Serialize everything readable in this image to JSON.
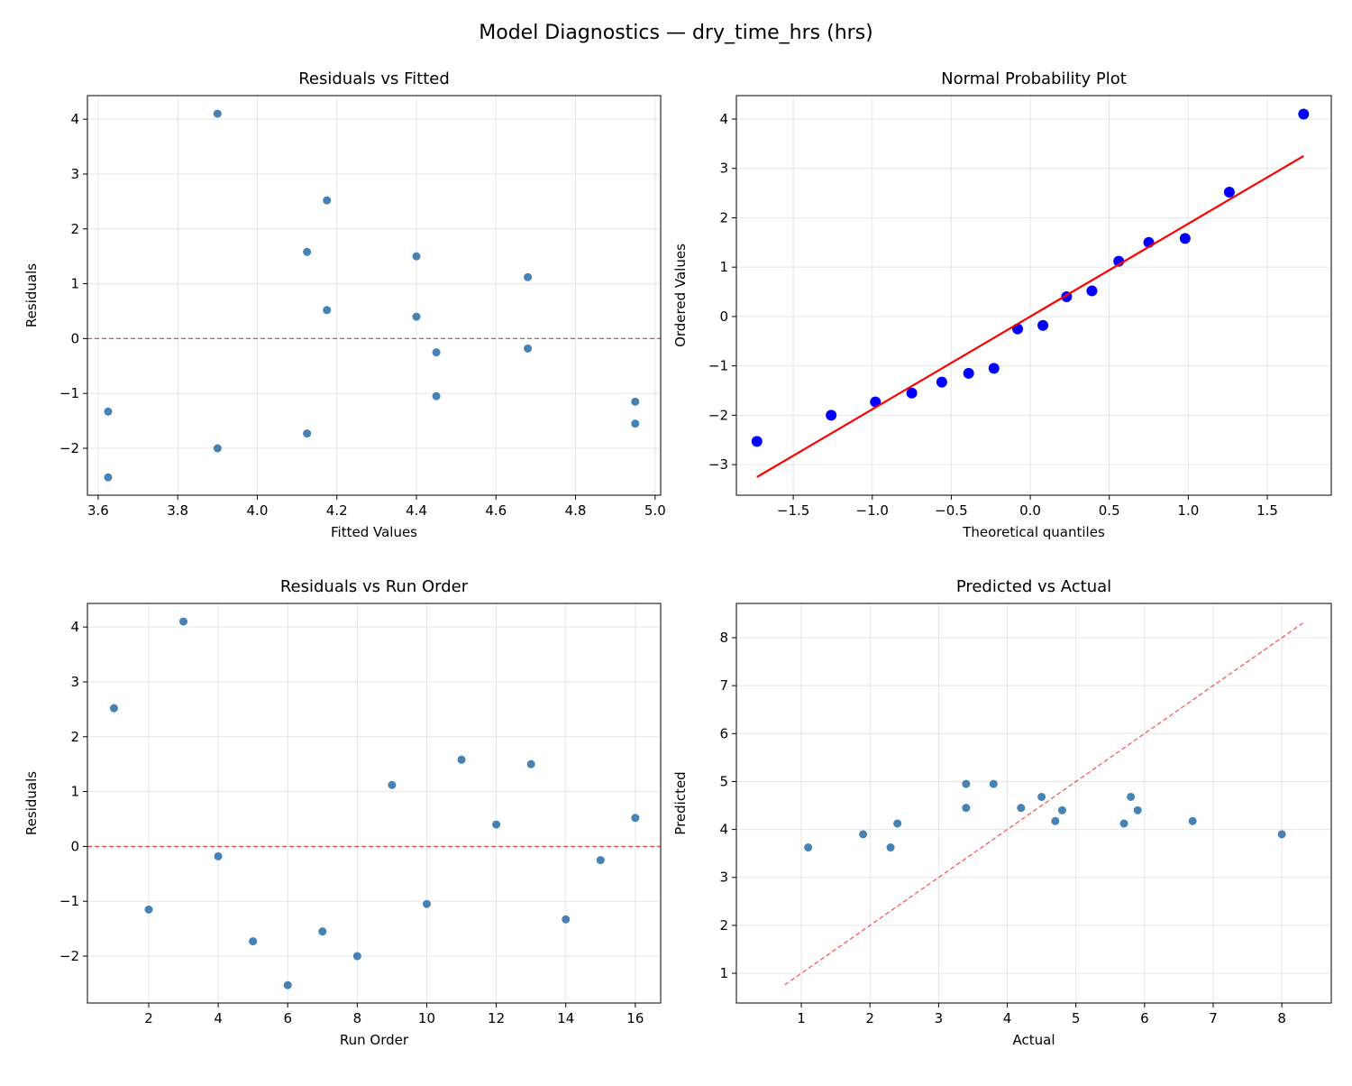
{
  "suptitle": "Model Diagnostics — dry_time_hrs (hrs)",
  "chart_data": [
    {
      "type": "scatter",
      "title": "Residuals vs Fitted",
      "xlabel": "Fitted Values",
      "ylabel": "Residuals",
      "xlim": [
        3.573,
        5.014
      ],
      "ylim": [
        -2.855,
        4.43
      ],
      "xticks": [
        3.6,
        3.8,
        4.0,
        4.2,
        4.4,
        4.6,
        4.8,
        5.0
      ],
      "xtick_labels": [
        "3.6",
        "3.8",
        "4.0",
        "4.2",
        "4.4",
        "4.6",
        "4.8",
        "5.0"
      ],
      "yticks": [
        -2,
        -1,
        0,
        1,
        2,
        3,
        4
      ],
      "ytick_labels": [
        "−2",
        "−1",
        "0",
        "1",
        "2",
        "3",
        "4"
      ],
      "grid": true,
      "color": "#4682b4",
      "x": [
        4.175,
        4.95,
        3.9,
        4.68,
        4.125,
        3.625,
        4.95,
        3.9,
        4.68,
        4.45,
        4.125,
        4.4,
        4.4,
        3.625,
        4.45,
        4.175
      ],
      "y": [
        2.52,
        -1.15,
        4.1,
        -0.18,
        -1.73,
        -2.53,
        -1.55,
        -2.0,
        1.12,
        -1.05,
        1.58,
        0.4,
        1.5,
        -1.33,
        -0.25,
        0.52
      ],
      "reference_line": {
        "type": "horizontal",
        "y": 0,
        "color": "#ff0000",
        "style": "dashed"
      }
    },
    {
      "type": "scatter",
      "title": "Normal Probability Plot",
      "xlabel": "Theoretical quantiles",
      "ylabel": "Ordered Values",
      "xlim": [
        -1.86,
        1.905
      ],
      "ylim": [
        -3.62,
        4.475
      ],
      "xticks": [
        -1.5,
        -1.0,
        -0.5,
        0.0,
        0.5,
        1.0,
        1.5
      ],
      "xtick_labels": [
        "−1.5",
        "−1.0",
        "−0.5",
        "0.0",
        "0.5",
        "1.0",
        "1.5"
      ],
      "yticks": [
        -3,
        -2,
        -1,
        0,
        1,
        2,
        3,
        4
      ],
      "ytick_labels": [
        "−3",
        "−2",
        "−1",
        "0",
        "1",
        "2",
        "3",
        "4"
      ],
      "grid": true,
      "color": "#0000ff",
      "x": [
        -1.73,
        -1.26,
        -0.98,
        -0.75,
        -0.56,
        -0.39,
        -0.23,
        -0.08,
        0.08,
        0.23,
        0.39,
        0.56,
        0.75,
        0.98,
        1.26,
        1.73
      ],
      "y": [
        -2.53,
        -2.0,
        -1.73,
        -1.55,
        -1.33,
        -1.15,
        -1.05,
        -0.25,
        -0.18,
        0.4,
        0.52,
        1.12,
        1.5,
        1.58,
        2.52,
        4.1
      ],
      "fit_line": {
        "slope": 1.88,
        "intercept": 0.0,
        "x_range": [
          -1.73,
          1.73
        ],
        "color": "#ff0000"
      }
    },
    {
      "type": "scatter",
      "title": "Residuals vs Run Order",
      "xlabel": "Run Order",
      "ylabel": "Residuals",
      "xlim": [
        0.237,
        16.73
      ],
      "ylim": [
        -2.855,
        4.43
      ],
      "xticks": [
        2,
        4,
        6,
        8,
        10,
        12,
        14,
        16
      ],
      "xtick_labels": [
        "2",
        "4",
        "6",
        "8",
        "10",
        "12",
        "14",
        "16"
      ],
      "yticks": [
        -2,
        -1,
        0,
        1,
        2,
        3,
        4
      ],
      "ytick_labels": [
        "−2",
        "−1",
        "0",
        "1",
        "2",
        "3",
        "4"
      ],
      "grid": true,
      "color": "#4682b4",
      "x": [
        1,
        2,
        3,
        4,
        5,
        6,
        7,
        8,
        9,
        10,
        11,
        12,
        13,
        14,
        15,
        16
      ],
      "y": [
        2.52,
        -1.15,
        4.1,
        -0.18,
        -1.73,
        -2.53,
        -1.55,
        -2.0,
        1.12,
        -1.05,
        1.58,
        0.4,
        1.5,
        -1.33,
        -0.25,
        0.52
      ],
      "reference_line": {
        "type": "horizontal",
        "y": 0,
        "color": "#ff0000",
        "style": "dashed"
      }
    },
    {
      "type": "scatter",
      "title": "Predicted vs Actual",
      "xlabel": "Actual",
      "ylabel": "Predicted",
      "xlim": [
        0.054,
        8.72
      ],
      "ylim": [
        0.38,
        8.715
      ],
      "xticks": [
        1,
        2,
        3,
        4,
        5,
        6,
        7,
        8
      ],
      "xtick_labels": [
        "1",
        "2",
        "3",
        "4",
        "5",
        "6",
        "7",
        "8"
      ],
      "yticks": [
        1,
        2,
        3,
        4,
        5,
        6,
        7,
        8
      ],
      "ytick_labels": [
        "1",
        "2",
        "3",
        "4",
        "5",
        "6",
        "7",
        "8"
      ],
      "grid": true,
      "color": "#4682b4",
      "x": [
        6.7,
        3.8,
        8.0,
        4.5,
        2.4,
        1.1,
        3.4,
        1.9,
        5.8,
        3.4,
        5.7,
        4.8,
        5.9,
        2.3,
        4.2,
        4.7
      ],
      "y": [
        4.175,
        4.95,
        3.9,
        4.68,
        4.125,
        3.625,
        4.95,
        3.9,
        4.68,
        4.45,
        4.125,
        4.4,
        4.4,
        3.625,
        4.45,
        4.175
      ],
      "reference_line": {
        "type": "diagonal",
        "range": [
          0.76,
          8.34
        ],
        "color": "#ff0000",
        "style": "dashed"
      }
    }
  ]
}
